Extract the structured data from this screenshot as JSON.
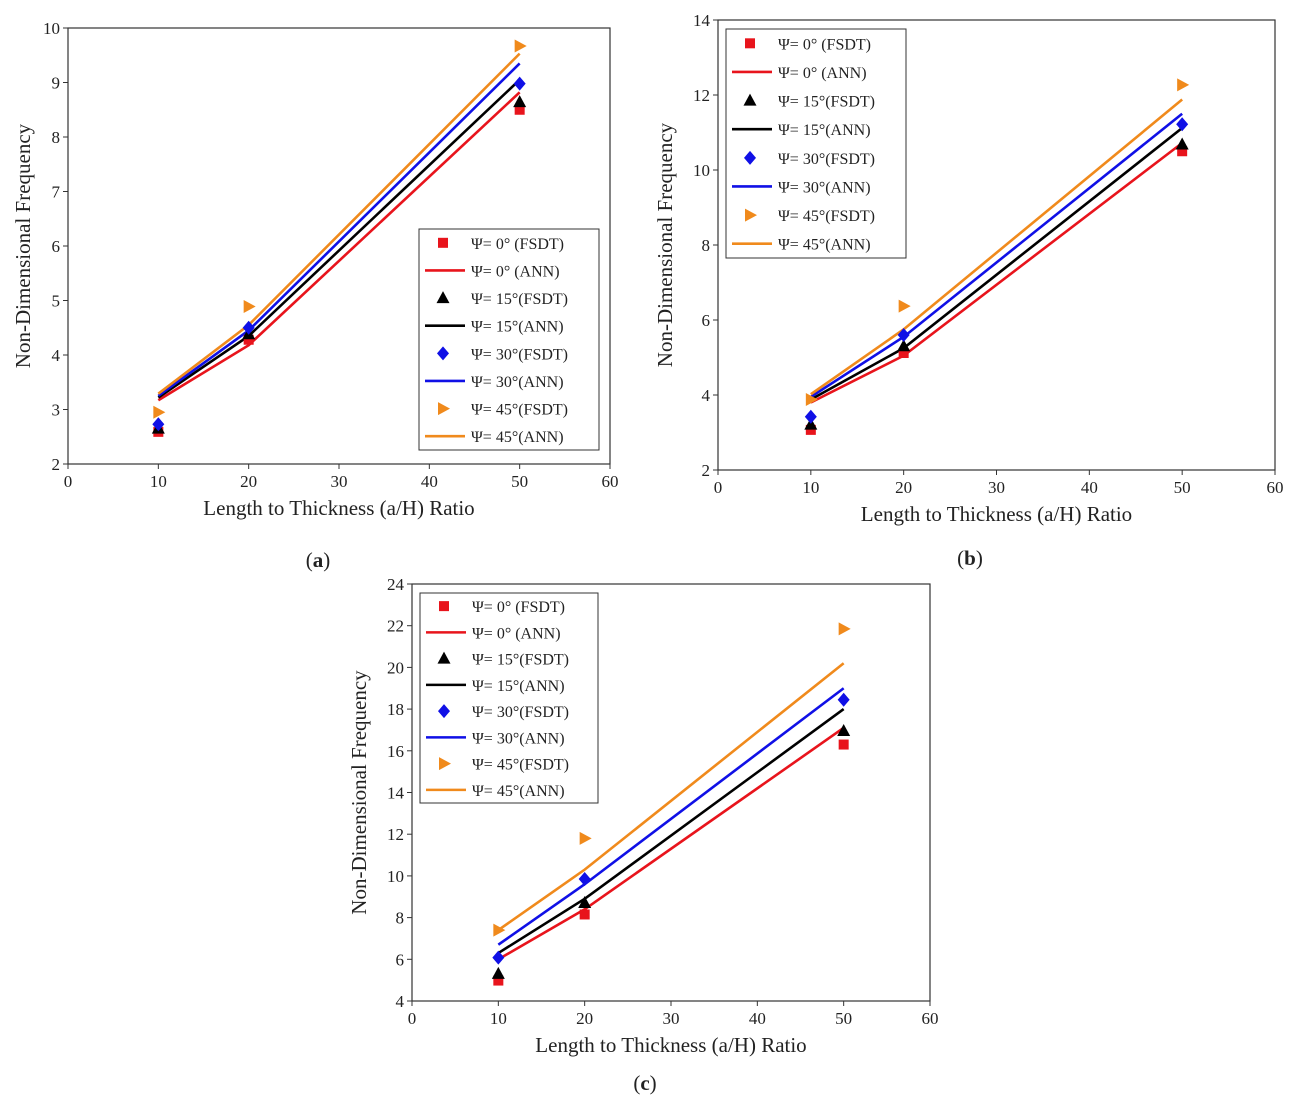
{
  "chart_data": [
    {
      "type": "scatter",
      "panel_label": "a",
      "xlabel": "Length to Thickness (a/H) Ratio",
      "ylabel": "Non-Dimensional Frequency",
      "xlim": [
        0,
        60
      ],
      "ylim": [
        2,
        10
      ],
      "xticks": [
        0,
        10,
        20,
        30,
        40,
        50,
        60
      ],
      "yticks": [
        2,
        3,
        4,
        5,
        6,
        7,
        8,
        9,
        10
      ],
      "grid": false,
      "legend_position": "bottom-right",
      "x": [
        10,
        20,
        50
      ],
      "series": [
        {
          "name": "Ψ= 0°  (FSDT)",
          "kind": "points",
          "marker": "square",
          "color": "#e8141c",
          "values": [
            2.59,
            4.28,
            8.5
          ]
        },
        {
          "name": "Ψ= 0°  (ANN)",
          "kind": "line",
          "color": "#e8141c",
          "values": [
            3.17,
            4.18,
            8.82
          ]
        },
        {
          "name": "Ψ= 15°(FSDT)",
          "kind": "points",
          "marker": "triangle",
          "color": "#000000",
          "values": [
            2.65,
            4.38,
            8.64
          ]
        },
        {
          "name": "Ψ= 15°(ANN)",
          "kind": "line",
          "color": "#000000",
          "values": [
            3.22,
            4.35,
            9.05
          ]
        },
        {
          "name": "Ψ= 30°(FSDT)",
          "kind": "points",
          "marker": "diamond",
          "color": "#1010e6",
          "values": [
            2.73,
            4.5,
            8.98
          ]
        },
        {
          "name": "Ψ= 30°(ANN)",
          "kind": "line",
          "color": "#1010e6",
          "values": [
            3.25,
            4.45,
            9.35
          ]
        },
        {
          "name": "Ψ= 45°(FSDT)",
          "kind": "points",
          "marker": "triangle-right",
          "color": "#f08a1c",
          "values": [
            2.95,
            4.89,
            9.67
          ]
        },
        {
          "name": "Ψ= 45°(ANN)",
          "kind": "line",
          "color": "#f08a1c",
          "values": [
            3.29,
            4.55,
            9.53
          ]
        }
      ]
    },
    {
      "type": "scatter",
      "panel_label": "b",
      "xlabel": "Length to Thickness (a/H) Ratio",
      "ylabel": "Non-Dimensional Frequency",
      "xlim": [
        0,
        60
      ],
      "ylim": [
        2,
        14
      ],
      "xticks": [
        0,
        10,
        20,
        30,
        40,
        50,
        60
      ],
      "yticks": [
        2,
        4,
        6,
        8,
        10,
        12,
        14
      ],
      "grid": false,
      "legend_position": "top-left",
      "x": [
        10,
        20,
        50
      ],
      "series": [
        {
          "name": "Ψ= 0°  (FSDT)",
          "kind": "points",
          "marker": "square",
          "color": "#e8141c",
          "values": [
            3.07,
            5.12,
            10.5
          ]
        },
        {
          "name": "Ψ= 0°  (ANN)",
          "kind": "line",
          "color": "#e8141c",
          "values": [
            3.8,
            5.05,
            10.72
          ]
        },
        {
          "name": "Ψ= 15°(FSDT)",
          "kind": "points",
          "marker": "triangle",
          "color": "#000000",
          "values": [
            3.21,
            5.3,
            10.68
          ]
        },
        {
          "name": "Ψ= 15°(ANN)",
          "kind": "line",
          "color": "#000000",
          "values": [
            3.88,
            5.25,
            11.12
          ]
        },
        {
          "name": "Ψ= 30°(FSDT)",
          "kind": "points",
          "marker": "diamond",
          "color": "#1010e6",
          "values": [
            3.42,
            5.6,
            11.22
          ]
        },
        {
          "name": "Ψ= 30°(ANN)",
          "kind": "line",
          "color": "#1010e6",
          "values": [
            3.95,
            5.55,
            11.5
          ]
        },
        {
          "name": "Ψ= 45°(FSDT)",
          "kind": "points",
          "marker": "triangle-right",
          "color": "#f08a1c",
          "values": [
            3.88,
            6.37,
            12.27
          ]
        },
        {
          "name": "Ψ= 45°(ANN)",
          "kind": "line",
          "color": "#f08a1c",
          "values": [
            4.02,
            5.75,
            11.88
          ]
        }
      ]
    },
    {
      "type": "scatter",
      "panel_label": "c",
      "xlabel": "Length to Thickness (a/H) Ratio",
      "ylabel": "Non-Dimensional Frequency",
      "xlim": [
        0,
        60
      ],
      "ylim": [
        4,
        24
      ],
      "xticks": [
        0,
        10,
        20,
        30,
        40,
        50,
        60
      ],
      "yticks": [
        4,
        6,
        8,
        10,
        12,
        14,
        16,
        18,
        20,
        22,
        24
      ],
      "grid": false,
      "legend_position": "top-left",
      "x": [
        10,
        20,
        50
      ],
      "series": [
        {
          "name": "Ψ= 0°  (FSDT)",
          "kind": "points",
          "marker": "square",
          "color": "#e8141c",
          "values": [
            4.98,
            8.15,
            16.3
          ]
        },
        {
          "name": "Ψ= 0°  (ANN)",
          "kind": "line",
          "color": "#e8141c",
          "values": [
            6.0,
            8.4,
            17.1
          ]
        },
        {
          "name": "Ψ= 15°(FSDT)",
          "kind": "points",
          "marker": "triangle",
          "color": "#000000",
          "values": [
            5.3,
            8.7,
            16.95
          ]
        },
        {
          "name": "Ψ= 15°(ANN)",
          "kind": "line",
          "color": "#000000",
          "values": [
            6.3,
            8.9,
            18.0
          ]
        },
        {
          "name": "Ψ= 30°(FSDT)",
          "kind": "points",
          "marker": "diamond",
          "color": "#1010e6",
          "values": [
            6.08,
            9.85,
            18.45
          ]
        },
        {
          "name": "Ψ= 30°(ANN)",
          "kind": "line",
          "color": "#1010e6",
          "values": [
            6.7,
            9.6,
            19.0
          ]
        },
        {
          "name": "Ψ= 45°(FSDT)",
          "kind": "points",
          "marker": "triangle-right",
          "color": "#f08a1c",
          "values": [
            7.4,
            11.8,
            21.85
          ]
        },
        {
          "name": "Ψ= 45°(ANN)",
          "kind": "line",
          "color": "#f08a1c",
          "values": [
            7.4,
            10.3,
            20.2
          ]
        }
      ]
    }
  ]
}
